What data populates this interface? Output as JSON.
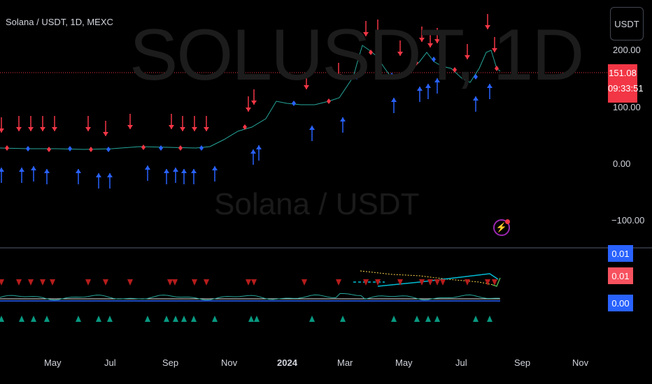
{
  "symbol_title": "Solana / USDT, 1D, MEXC",
  "watermark": {
    "ticker": "SOLUSDT, 1D",
    "name": "Solana / USDT"
  },
  "currency_button": "USDT",
  "price_axis": {
    "top": "200.00",
    "mid_upper": "100.00",
    "zero": "0.00",
    "negative": "−100.00"
  },
  "last_price": {
    "value": "151.08",
    "countdown": "09:33:51"
  },
  "indicator_values": [
    {
      "label": "0.01",
      "color": "#2962ff"
    },
    {
      "label": "0.01",
      "color": "#f7525f"
    },
    {
      "label": "0.00",
      "color": "#2962ff"
    }
  ],
  "time_axis": [
    "May",
    "Jul",
    "Sep",
    "Nov",
    "2024",
    "Mar",
    "May",
    "Jul",
    "Sep",
    "Nov"
  ],
  "alert_icon": "lightning-icon",
  "colors": {
    "up_arrow": "#2962ff",
    "down_arrow": "#f23645",
    "up_triangle": "#089981",
    "down_triangle": "#b71c1c",
    "price_line": "#f23645"
  }
}
